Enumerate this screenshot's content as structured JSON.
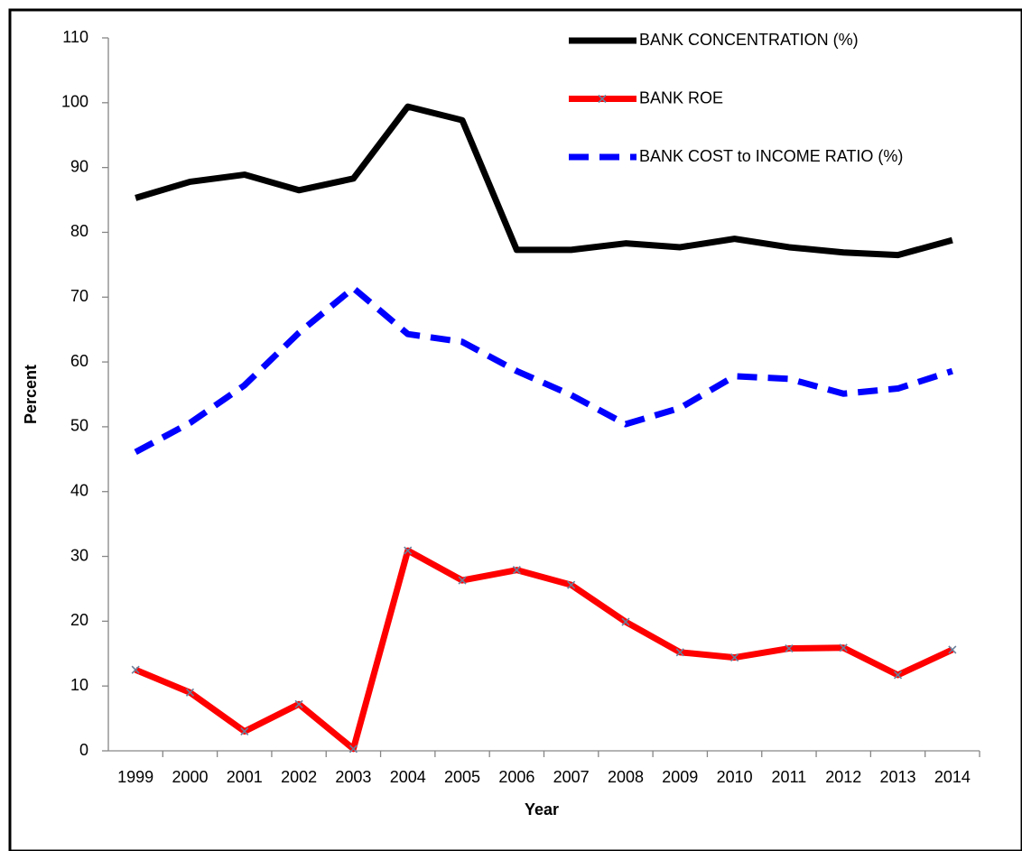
{
  "chart_data": {
    "type": "line",
    "x_label": "Year",
    "y_label": "Percent",
    "categories": [
      "1999",
      "2000",
      "2001",
      "2002",
      "2003",
      "2004",
      "2005",
      "2006",
      "2007",
      "2008",
      "2009",
      "2010",
      "2011",
      "2012",
      "2013",
      "2014"
    ],
    "series": [
      {
        "name": "BANK CONCENTRATION (%)",
        "color": "#000000",
        "dashed": false,
        "marker": null,
        "values": [
          85.3,
          87.8,
          88.9,
          86.5,
          88.3,
          99.4,
          97.3,
          77.3,
          77.3,
          78.3,
          77.7,
          79.0,
          77.7,
          76.9,
          76.5,
          78.8
        ]
      },
      {
        "name": "BANK ROE",
        "color": "#ff0000",
        "dashed": false,
        "marker": "x",
        "values": [
          12.5,
          9.0,
          3.0,
          7.2,
          0.3,
          30.9,
          26.3,
          27.9,
          25.6,
          19.9,
          15.2,
          14.4,
          15.8,
          15.9,
          11.7,
          15.6
        ]
      },
      {
        "name": "BANK COST to INCOME RATIO (%)",
        "color": "#0000ff",
        "dashed": true,
        "marker": null,
        "values": [
          46.1,
          50.6,
          56.4,
          64.5,
          71.4,
          64.3,
          63.1,
          58.6,
          54.9,
          50.4,
          52.9,
          57.8,
          57.4,
          55.1,
          55.9,
          58.6
        ]
      }
    ],
    "ylim": [
      0,
      110
    ],
    "yticks": [
      0,
      10,
      20,
      30,
      40,
      50,
      60,
      70,
      80,
      90,
      100,
      110
    ],
    "grid": false,
    "legend": "top-right"
  }
}
